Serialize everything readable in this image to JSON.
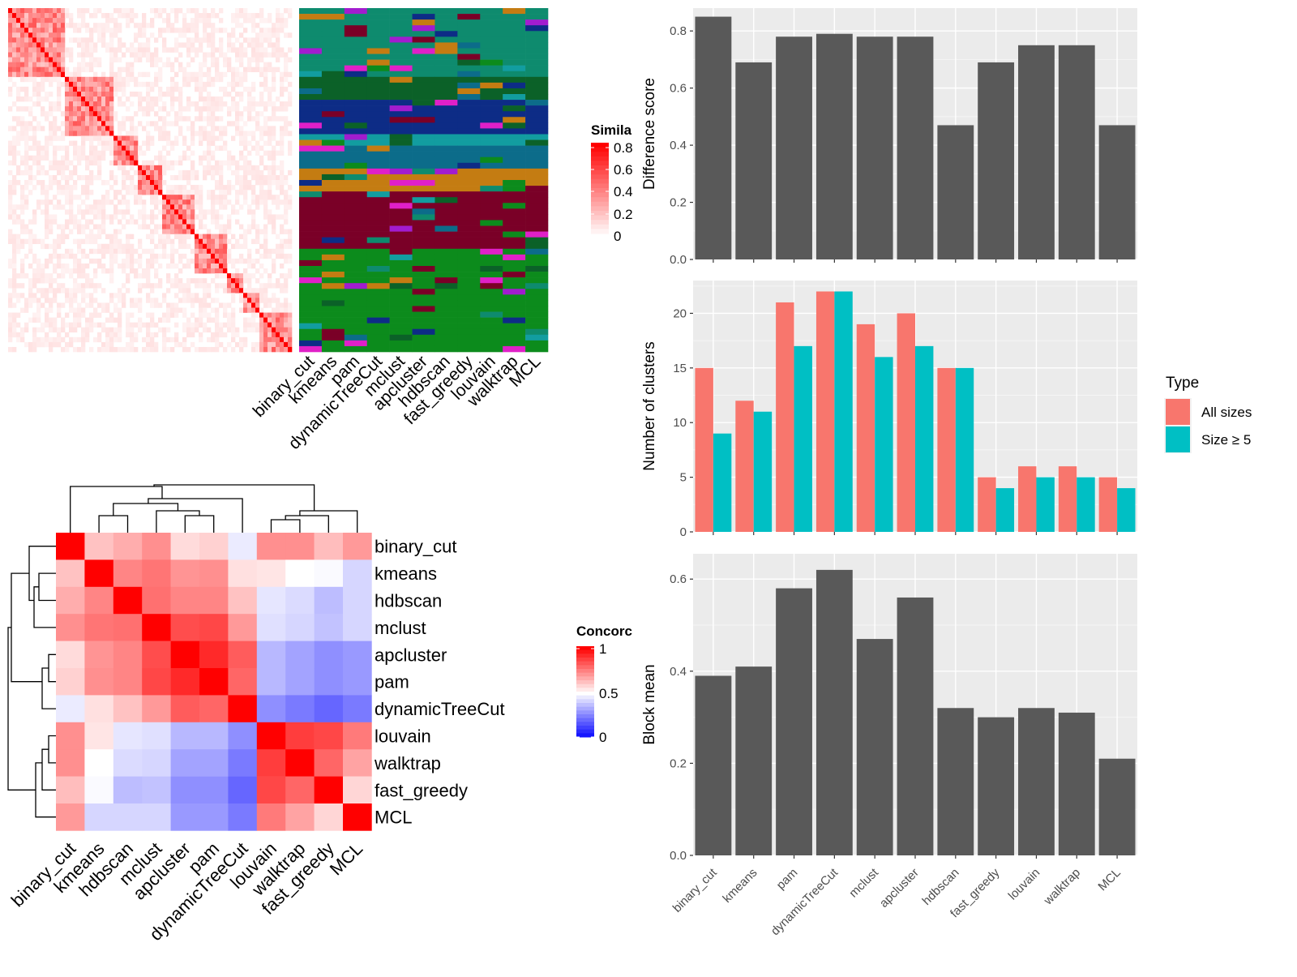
{
  "colors": {
    "panel_bg": "#EBEBEB",
    "grid": "#FFFFFF",
    "bar_gray": "#595959",
    "all_sizes": "#F8766D",
    "size5": "#00BFC4",
    "sim_high": "#FF0000",
    "conc_low": "#0000FF"
  },
  "methods_order": [
    "binary_cut",
    "kmeans",
    "pam",
    "dynamicTreeCut",
    "mclust",
    "apcluster",
    "hdbscan",
    "fast_greedy",
    "louvain",
    "walktrap",
    "MCL"
  ],
  "similarity_heatmap": {
    "legend_title": "Simila",
    "legend_ticks": [
      "0.8",
      "0.6",
      "0.4",
      "0.2",
      "0"
    ],
    "column_labels": [
      "binary_cut",
      "kmeans",
      "pam",
      "dynamicTreeCut",
      "mclust",
      "apcluster",
      "hdbscan",
      "fast_greedy",
      "louvain",
      "walktrap",
      "MCL"
    ],
    "cluster_palette": [
      "#0E8B6E",
      "#0B6128",
      "#0D2C86",
      "#7A0027",
      "#0C6C8A",
      "#C47C12",
      "#0C8B1C",
      "#A21CCF",
      "#129DA0",
      "#E020C8"
    ]
  },
  "concordance_heatmap": {
    "legend_title": "Concorc",
    "legend_ticks": [
      "1",
      "0.5",
      "0"
    ],
    "labels": [
      "binary_cut",
      "kmeans",
      "hdbscan",
      "mclust",
      "apcluster",
      "pam",
      "dynamicTreeCut",
      "louvain",
      "walktrap",
      "fast_greedy",
      "MCL"
    ],
    "matrix": [
      [
        1.0,
        0.62,
        0.66,
        0.72,
        0.57,
        0.59,
        0.46,
        0.72,
        0.72,
        0.63,
        0.7
      ],
      [
        0.62,
        1.0,
        0.74,
        0.77,
        0.71,
        0.72,
        0.56,
        0.55,
        0.5,
        0.49,
        0.42
      ],
      [
        0.66,
        0.74,
        1.0,
        0.78,
        0.74,
        0.74,
        0.62,
        0.45,
        0.43,
        0.37,
        0.42
      ],
      [
        0.72,
        0.77,
        0.78,
        1.0,
        0.85,
        0.86,
        0.7,
        0.44,
        0.42,
        0.38,
        0.42
      ],
      [
        0.57,
        0.71,
        0.74,
        0.85,
        1.0,
        0.92,
        0.82,
        0.36,
        0.32,
        0.28,
        0.3
      ],
      [
        0.59,
        0.72,
        0.74,
        0.86,
        0.92,
        1.0,
        0.8,
        0.36,
        0.32,
        0.28,
        0.3
      ],
      [
        0.46,
        0.56,
        0.62,
        0.7,
        0.82,
        0.8,
        1.0,
        0.28,
        0.24,
        0.2,
        0.24
      ],
      [
        0.72,
        0.55,
        0.45,
        0.44,
        0.36,
        0.36,
        0.28,
        1.0,
        0.88,
        0.86,
        0.76
      ],
      [
        0.72,
        0.5,
        0.43,
        0.42,
        0.32,
        0.32,
        0.24,
        0.88,
        1.0,
        0.8,
        0.68
      ],
      [
        0.63,
        0.49,
        0.37,
        0.38,
        0.28,
        0.28,
        0.2,
        0.86,
        0.8,
        1.0,
        0.58
      ],
      [
        0.7,
        0.42,
        0.42,
        0.42,
        0.3,
        0.3,
        0.24,
        0.76,
        0.68,
        0.58,
        1.0
      ]
    ]
  },
  "chart_data": [
    {
      "type": "bar",
      "ylabel": "Difference score",
      "categories": [
        "binary_cut",
        "kmeans",
        "pam",
        "dynamicTreeCut",
        "mclust",
        "apcluster",
        "hdbscan",
        "fast_greedy",
        "louvain",
        "walktrap",
        "MCL"
      ],
      "values": [
        0.85,
        0.69,
        0.78,
        0.79,
        0.78,
        0.78,
        0.47,
        0.69,
        0.75,
        0.75,
        0.47
      ],
      "ylim": [
        0,
        0.88
      ],
      "yticks": [
        "0.0",
        "0.2",
        "0.4",
        "0.6",
        "0.8"
      ],
      "grid": true
    },
    {
      "type": "bar",
      "ylabel": "Number of clusters",
      "categories": [
        "binary_cut",
        "kmeans",
        "pam",
        "dynamicTreeCut",
        "mclust",
        "apcluster",
        "hdbscan",
        "fast_greedy",
        "louvain",
        "walktrap",
        "MCL"
      ],
      "series": [
        {
          "name": "All sizes",
          "values": [
            15,
            12,
            21,
            22,
            19,
            20,
            15,
            5,
            6,
            6,
            5
          ]
        },
        {
          "name": "Size ≥ 5",
          "values": [
            9,
            11,
            17,
            22,
            16,
            17,
            15,
            4,
            5,
            5,
            4
          ]
        }
      ],
      "ylim": [
        0,
        23
      ],
      "yticks": [
        "0",
        "5",
        "10",
        "15",
        "20"
      ],
      "legend_title": "Type",
      "legend_position": "right",
      "grid": true
    },
    {
      "type": "bar",
      "ylabel": "Block mean",
      "categories": [
        "binary_cut",
        "kmeans",
        "pam",
        "dynamicTreeCut",
        "mclust",
        "apcluster",
        "hdbscan",
        "fast_greedy",
        "louvain",
        "walktrap",
        "MCL"
      ],
      "values": [
        0.39,
        0.41,
        0.58,
        0.62,
        0.47,
        0.56,
        0.32,
        0.3,
        0.32,
        0.31,
        0.21
      ],
      "ylim": [
        0,
        0.655
      ],
      "yticks": [
        "0.0",
        "0.2",
        "0.4",
        "0.6"
      ],
      "grid": true
    }
  ]
}
